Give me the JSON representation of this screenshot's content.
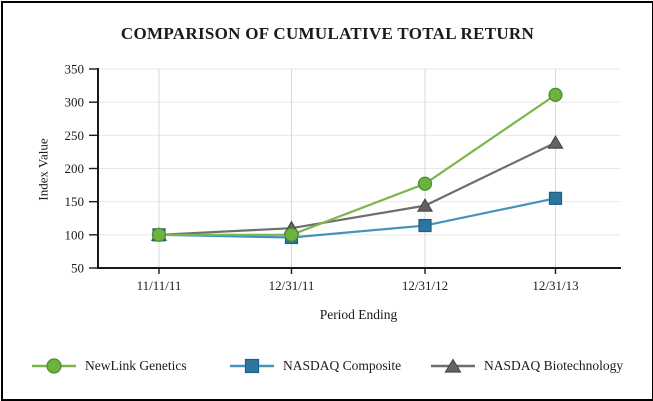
{
  "title": "COMPARISON OF CUMULATIVE TOTAL RETURN",
  "chart_data": {
    "type": "line",
    "title": "COMPARISON OF CUMULATIVE TOTAL RETURN",
    "xlabel": "Period Ending",
    "ylabel": "Index Value",
    "categories": [
      "11/11/11",
      "12/31/11",
      "12/31/12",
      "12/31/13"
    ],
    "y_ticks": [
      50,
      100,
      150,
      200,
      250,
      300,
      350
    ],
    "ylim": [
      50,
      350
    ],
    "grid": true,
    "legend_position": "bottom",
    "series": [
      {
        "name": "NewLink Genetics",
        "marker": "circle",
        "color": "#7ab648",
        "marker_fill": "#6cb33e",
        "marker_stroke": "#4e8a2f",
        "values": [
          100,
          100,
          177,
          311
        ]
      },
      {
        "name": "NASDAQ Composite",
        "marker": "square",
        "color": "#4792bc",
        "marker_fill": "#2c759f",
        "marker_stroke": "#205e83",
        "values": [
          100,
          96,
          114,
          155
        ]
      },
      {
        "name": "NASDAQ Biotechnology",
        "marker": "triangle",
        "color": "#6e6e71",
        "marker_fill": "#636366",
        "marker_stroke": "#4a4a4c",
        "values": [
          100,
          110,
          144,
          239
        ]
      }
    ],
    "axis_color": "#1a1a1a",
    "grid_color_h": "#e8e8e8",
    "grid_color_v": "#d9d9d9"
  }
}
